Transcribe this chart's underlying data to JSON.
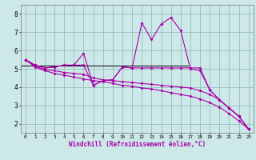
{
  "xlabel": "Windchill (Refroidissement éolien,°C)",
  "bg_color": "#cce8e8",
  "line_color": "#aa00aa",
  "grid_color": "#99bbbb",
  "x_values": [
    0,
    1,
    2,
    3,
    4,
    5,
    6,
    7,
    8,
    9,
    10,
    11,
    12,
    13,
    14,
    15,
    16,
    17,
    18,
    19,
    20,
    21,
    22,
    23
  ],
  "line1": [
    5.5,
    5.2,
    5.05,
    5.1,
    5.2,
    5.2,
    5.2,
    4.1,
    4.35,
    4.4,
    5.1,
    5.05,
    7.5,
    6.6,
    7.45,
    7.8,
    7.1,
    5.0,
    4.9,
    3.85,
    3.3,
    2.85,
    2.4,
    1.7
  ],
  "line2": [
    5.5,
    5.2,
    5.05,
    5.1,
    5.2,
    5.2,
    5.85,
    4.1,
    4.35,
    4.4,
    5.1,
    5.05,
    5.05,
    5.05,
    5.05,
    5.05,
    5.05,
    5.05,
    5.05,
    3.85,
    3.3,
    2.85,
    2.4,
    1.7
  ],
  "line3": [
    5.5,
    5.15,
    4.95,
    4.9,
    4.8,
    4.75,
    4.7,
    4.5,
    4.4,
    4.35,
    4.3,
    4.25,
    4.2,
    4.15,
    4.1,
    4.05,
    4.0,
    3.95,
    3.8,
    3.6,
    3.3,
    2.85,
    2.4,
    1.7
  ],
  "line4": [
    5.5,
    5.1,
    4.9,
    4.75,
    4.65,
    4.55,
    4.45,
    4.35,
    4.3,
    4.2,
    4.1,
    4.05,
    3.95,
    3.9,
    3.8,
    3.7,
    3.6,
    3.5,
    3.35,
    3.15,
    2.9,
    2.55,
    2.15,
    1.7
  ],
  "xlim": [
    -0.5,
    23.5
  ],
  "ylim": [
    1.5,
    8.5
  ],
  "yticks": [
    2,
    3,
    4,
    5,
    6,
    7,
    8
  ],
  "xticks": [
    0,
    1,
    2,
    3,
    4,
    5,
    6,
    7,
    8,
    9,
    10,
    11,
    12,
    13,
    14,
    15,
    16,
    17,
    18,
    19,
    20,
    21,
    22,
    23
  ]
}
